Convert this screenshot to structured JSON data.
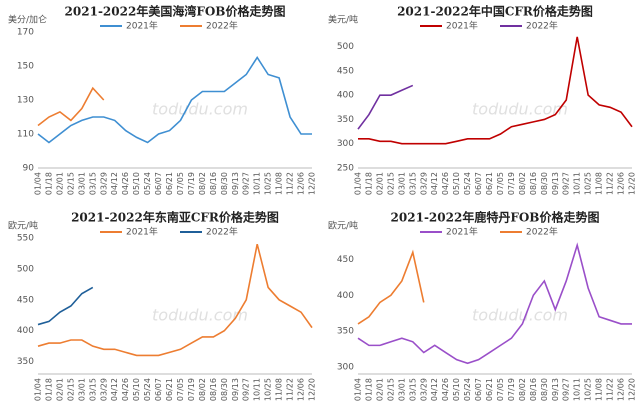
{
  "chart_data": [
    {
      "type": "line",
      "title": "2021-2022年美国海湾FOB价格走势图",
      "y_label": "美分/加仑",
      "watermark": "todudu.com",
      "categories": [
        "01/04",
        "01/18",
        "02/01",
        "02/15",
        "03/01",
        "03/15",
        "03/29",
        "04/12",
        "04/26",
        "05/10",
        "05/24",
        "06/07",
        "06/21",
        "07/05",
        "07/19",
        "08/02",
        "08/16",
        "08/30",
        "09/13",
        "09/27",
        "10/11",
        "10/25",
        "11/08",
        "11/22",
        "12/06",
        "12/20"
      ],
      "series": [
        {
          "name": "2021年",
          "color": "#3f8fd2",
          "values": [
            110,
            105,
            110,
            115,
            118,
            120,
            120,
            118,
            112,
            108,
            105,
            110,
            112,
            118,
            130,
            135,
            135,
            135,
            140,
            145,
            155,
            145,
            143,
            120,
            110,
            110
          ]
        },
        {
          "name": "2022年",
          "color": "#ed7d31",
          "values": [
            115,
            120,
            123,
            118,
            125,
            137,
            130,
            null,
            null,
            null,
            null,
            null,
            null,
            null,
            null,
            null,
            null,
            null,
            null,
            null,
            null,
            null,
            null,
            null,
            null,
            null
          ]
        }
      ],
      "ylim": [
        90,
        170
      ],
      "yticks": [
        90,
        110,
        130,
        150,
        170
      ],
      "grid": false,
      "legend": "top"
    },
    {
      "type": "line",
      "title": "2021-2022年中国CFR价格走势图",
      "y_label": "美元/吨",
      "watermark": "todudu.com",
      "categories": [
        "01/04",
        "01/18",
        "02/01",
        "02/15",
        "03/01",
        "03/15",
        "03/29",
        "04/12",
        "04/26",
        "05/10",
        "05/24",
        "06/07",
        "06/21",
        "07/05",
        "07/19",
        "08/02",
        "08/16",
        "08/30",
        "09/13",
        "09/27",
        "10/11",
        "10/25",
        "11/08",
        "11/22",
        "12/06",
        "12/20"
      ],
      "series": [
        {
          "name": "2021年",
          "color": "#c00000",
          "values": [
            310,
            310,
            305,
            305,
            300,
            300,
            300,
            300,
            300,
            305,
            310,
            310,
            310,
            320,
            335,
            340,
            345,
            350,
            360,
            390,
            520,
            400,
            380,
            375,
            365,
            335
          ]
        },
        {
          "name": "2022年",
          "color": "#7030a0",
          "values": [
            330,
            360,
            400,
            400,
            410,
            420,
            null,
            null,
            null,
            null,
            null,
            null,
            null,
            null,
            null,
            null,
            null,
            null,
            null,
            null,
            null,
            null,
            null,
            null,
            null,
            null
          ]
        }
      ],
      "ylim": [
        250,
        530
      ],
      "yticks": [
        250,
        300,
        350,
        400,
        450,
        500
      ],
      "grid": false,
      "legend": "top"
    },
    {
      "type": "line",
      "title": "2021-2022年东南亚CFR价格走势图",
      "y_label": "欧元/吨",
      "watermark": "todudu.com",
      "categories": [
        "01/04",
        "01/18",
        "02/01",
        "02/15",
        "03/01",
        "03/15",
        "03/29",
        "04/12",
        "04/26",
        "05/10",
        "05/24",
        "06/07",
        "06/21",
        "07/05",
        "07/19",
        "08/02",
        "08/16",
        "08/30",
        "09/13",
        "09/27",
        "10/11",
        "10/25",
        "11/08",
        "11/22",
        "12/06",
        "12/20"
      ],
      "series": [
        {
          "name": "2021年",
          "color": "#ed7d31",
          "values": [
            375,
            380,
            380,
            385,
            385,
            375,
            370,
            370,
            365,
            360,
            360,
            360,
            365,
            370,
            380,
            390,
            390,
            400,
            420,
            450,
            540,
            470,
            450,
            440,
            430,
            405
          ]
        },
        {
          "name": "2022年",
          "color": "#1f5f99",
          "values": [
            410,
            415,
            430,
            440,
            460,
            470,
            null,
            null,
            null,
            null,
            null,
            null,
            null,
            null,
            null,
            null,
            null,
            null,
            null,
            null,
            null,
            null,
            null,
            null,
            null,
            null
          ]
        }
      ],
      "ylim": [
        330,
        550
      ],
      "yticks": [
        350,
        400,
        450,
        500,
        550
      ],
      "grid": false,
      "legend": "top"
    },
    {
      "type": "line",
      "title": "2021-2022年鹿特丹FOB价格走势图",
      "y_label": "欧元/吨",
      "watermark": "todudu.com",
      "categories": [
        "01/04",
        "01/18",
        "02/01",
        "02/15",
        "03/01",
        "03/15",
        "03/29",
        "04/12",
        "04/26",
        "05/10",
        "05/24",
        "06/07",
        "06/21",
        "07/05",
        "07/19",
        "08/02",
        "08/16",
        "08/30",
        "09/13",
        "09/27",
        "10/11",
        "10/25",
        "11/08",
        "11/22",
        "12/06",
        "12/20"
      ],
      "series": [
        {
          "name": "2021年",
          "color": "#9a4fc9",
          "values": [
            340,
            330,
            330,
            335,
            340,
            335,
            320,
            330,
            320,
            310,
            305,
            310,
            320,
            330,
            340,
            360,
            400,
            420,
            380,
            420,
            470,
            410,
            370,
            365,
            360,
            360
          ]
        },
        {
          "name": "2022年",
          "color": "#ed7d31",
          "values": [
            360,
            370,
            390,
            400,
            420,
            460,
            390,
            null,
            null,
            null,
            null,
            null,
            null,
            null,
            null,
            null,
            null,
            null,
            null,
            null,
            null,
            null,
            null,
            null,
            null,
            null
          ]
        }
      ],
      "ylim": [
        290,
        480
      ],
      "yticks": [
        300,
        350,
        400,
        450
      ],
      "grid": false,
      "legend": "top"
    }
  ]
}
